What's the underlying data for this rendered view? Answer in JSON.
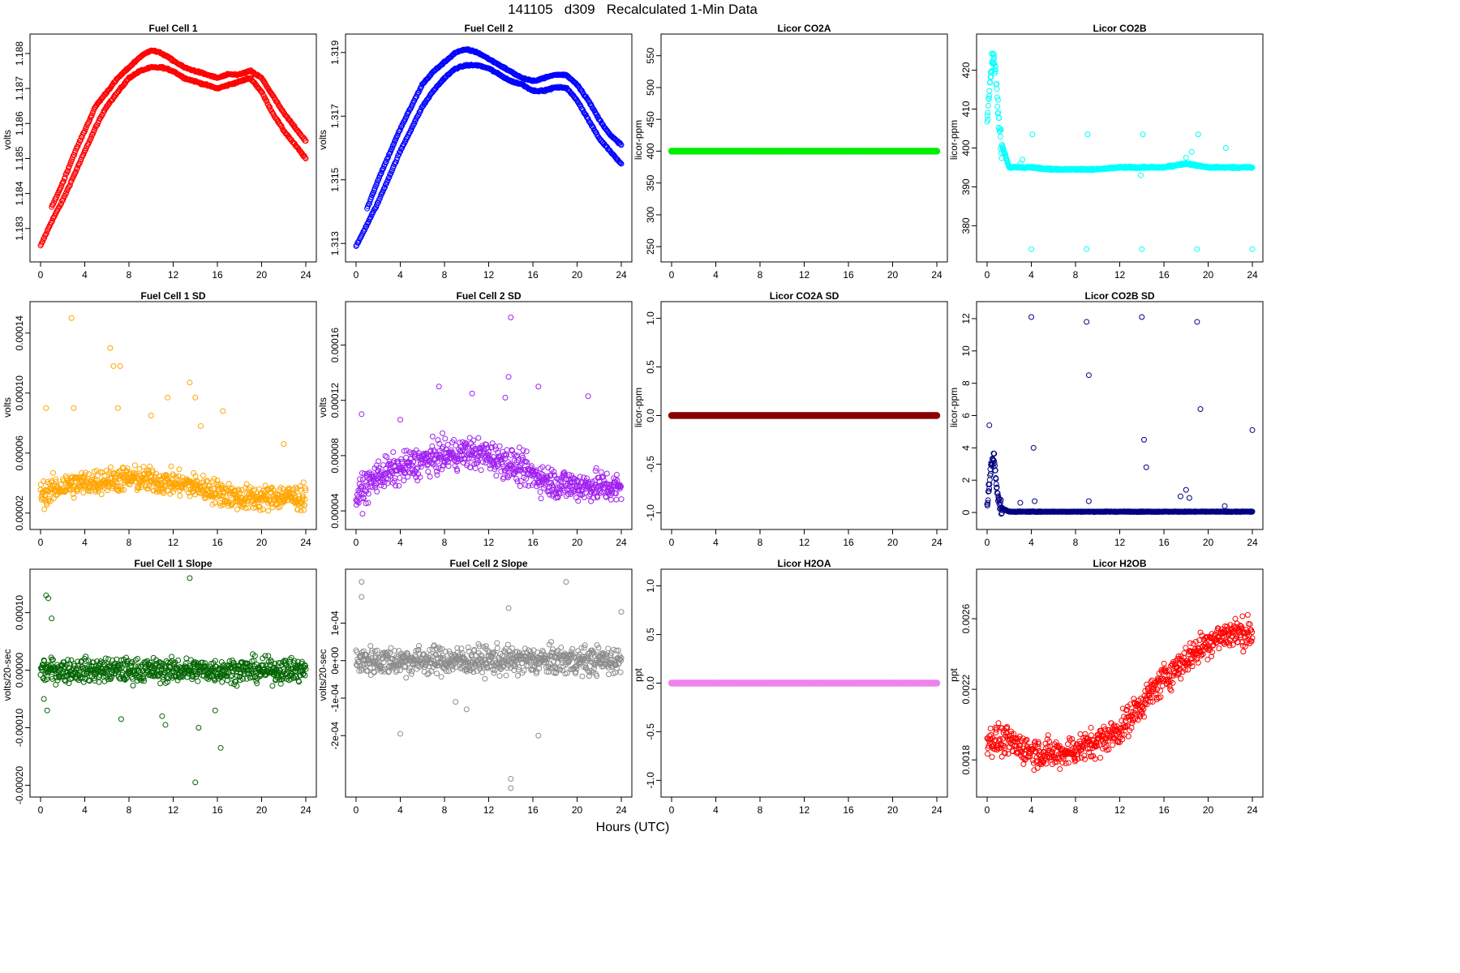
{
  "title": "141105   d309   Recalculated 1-Min Data",
  "x_axis_label": "Hours (UTC)",
  "x_ticks": [
    0,
    4,
    8,
    12,
    16,
    20,
    24
  ],
  "chart_data": [
    {
      "id": "fc1",
      "type": "scatter",
      "title": "Fuel Cell 1",
      "ylabel": "volts",
      "color": "#ff0000",
      "xlim": [
        0,
        24
      ],
      "ylim": [
        1.1823,
        1.1883
      ],
      "yticks": [
        1.183,
        1.184,
        1.185,
        1.186,
        1.187,
        1.188
      ],
      "ytick_labels": [
        "1.183",
        "1.184",
        "1.185",
        "1.186",
        "1.187",
        "1.188"
      ],
      "series": [
        {
          "x": [
            0,
            1,
            2,
            3,
            4,
            5,
            6,
            7,
            8,
            9,
            10,
            11,
            12,
            13,
            14,
            15,
            16,
            17,
            18,
            19,
            20,
            21,
            22,
            23,
            24
          ],
          "y": [
            1.1825,
            1.1832,
            1.1838,
            1.1845,
            1.1852,
            1.1859,
            1.1865,
            1.1869,
            1.1873,
            1.1875,
            1.1876,
            1.1876,
            1.1875,
            1.1873,
            1.1872,
            1.1871,
            1.187,
            1.1871,
            1.1872,
            1.1873,
            1.1869,
            1.1863,
            1.1858,
            1.1854,
            1.185
          ]
        },
        {
          "x": [
            1,
            2,
            3,
            4,
            5,
            6,
            7,
            8,
            9,
            10,
            11,
            12,
            13,
            14,
            15,
            16,
            17,
            18,
            19,
            20,
            21,
            22,
            23,
            24
          ],
          "y": [
            1.1836,
            1.1843,
            1.1851,
            1.1858,
            1.1865,
            1.1869,
            1.1873,
            1.1876,
            1.1879,
            1.1881,
            1.188,
            1.1878,
            1.1876,
            1.1875,
            1.1874,
            1.1873,
            1.1874,
            1.1874,
            1.1875,
            1.1873,
            1.1868,
            1.1863,
            1.1859,
            1.1855
          ]
        }
      ]
    },
    {
      "id": "fc2",
      "type": "scatter",
      "title": "Fuel Cell 2",
      "ylabel": "volts",
      "color": "#0000ff",
      "xlim": [
        0,
        24
      ],
      "ylim": [
        1.3127,
        1.3193
      ],
      "yticks": [
        1.313,
        1.315,
        1.317,
        1.319
      ],
      "ytick_labels": [
        "1.313",
        "1.315",
        "1.317",
        "1.319"
      ],
      "series": [
        {
          "x": [
            0,
            1,
            2,
            3,
            4,
            5,
            6,
            7,
            8,
            9,
            10,
            11,
            12,
            13,
            14,
            15,
            16,
            17,
            18,
            19,
            20,
            21,
            22,
            23,
            24
          ],
          "y": [
            1.3129,
            1.3136,
            1.3143,
            1.3151,
            1.3159,
            1.3166,
            1.3173,
            1.3178,
            1.3182,
            1.3185,
            1.3186,
            1.3186,
            1.3185,
            1.3183,
            1.3181,
            1.318,
            1.3178,
            1.3178,
            1.3179,
            1.3179,
            1.3175,
            1.3169,
            1.3163,
            1.3159,
            1.3155
          ]
        },
        {
          "x": [
            1,
            2,
            3,
            4,
            5,
            6,
            7,
            8,
            9,
            10,
            11,
            12,
            13,
            14,
            15,
            16,
            17,
            18,
            19,
            20,
            21,
            22,
            23,
            24
          ],
          "y": [
            1.3141,
            1.315,
            1.3158,
            1.3166,
            1.3173,
            1.318,
            1.3184,
            1.3187,
            1.319,
            1.3191,
            1.319,
            1.3188,
            1.3186,
            1.3184,
            1.3182,
            1.3181,
            1.3182,
            1.3183,
            1.3183,
            1.318,
            1.3175,
            1.3169,
            1.3164,
            1.3161
          ]
        }
      ]
    },
    {
      "id": "co2a",
      "type": "scatter",
      "title": "Licor CO2A",
      "ylabel": "licor-ppm",
      "color": "#00ee00",
      "xlim": [
        0,
        24
      ],
      "ylim": [
        240,
        570
      ],
      "yticks": [
        250,
        300,
        350,
        400,
        450,
        500,
        550
      ],
      "ytick_labels": [
        "250",
        "300",
        "350",
        "400",
        "450",
        "500",
        "550"
      ],
      "series": [
        {
          "x": [
            0,
            24
          ],
          "y": [
            400,
            400
          ]
        }
      ]
    },
    {
      "id": "co2b",
      "type": "scatter",
      "title": "Licor CO2B",
      "ylabel": "licor-ppm",
      "color": "#00ffff",
      "xlim": [
        0,
        24
      ],
      "ylim": [
        373,
        427
      ],
      "yticks": [
        380,
        390,
        400,
        410,
        420
      ],
      "ytick_labels": [
        "380",
        "390",
        "400",
        "410",
        "420"
      ],
      "series": [
        {
          "x": [
            0,
            0.3,
            0.6,
            0.9,
            1.2,
            2,
            4,
            6,
            8,
            10,
            12,
            14,
            16,
            18,
            20,
            22,
            24
          ],
          "y": [
            406,
            418,
            424,
            414,
            402,
            395,
            395,
            394.5,
            394.5,
            394.5,
            395,
            395,
            395,
            396,
            395,
            395,
            395
          ]
        },
        {
          "x": [
            4,
            4.1,
            9,
            9.1,
            14,
            14.1,
            19,
            19.1,
            24
          ],
          "y": [
            374,
            403.5,
            374,
            403.5,
            374,
            403.5,
            374,
            403.5,
            374
          ]
        }
      ]
    },
    {
      "id": "fc1sd",
      "type": "scatter",
      "title": "Fuel Cell 1 SD",
      "ylabel": "volts",
      "color": "#ffa500",
      "xlim": [
        0,
        24
      ],
      "ylim": [
        1.5e-05,
        0.000155
      ],
      "yticks": [
        2e-05,
        6e-05,
        0.0001,
        0.00014
      ],
      "ytick_labels": [
        "0.00002",
        "0.00006",
        "0.00010",
        "0.00014"
      ],
      "series": [
        {
          "x": [
            0,
            2,
            4,
            6,
            8,
            10,
            12,
            14,
            16,
            18,
            20,
            22,
            24
          ],
          "y": [
            3.2e-05,
            3.8e-05,
            4e-05,
            4.2e-05,
            4.3e-05,
            4.2e-05,
            4e-05,
            3.8e-05,
            3.4e-05,
            3e-05,
            3e-05,
            3.1e-05,
            3e-05
          ]
        },
        {
          "x": [
            0.5,
            2.8,
            3,
            6.3,
            6.6,
            7.2,
            7,
            11.5,
            10,
            13.5,
            14,
            14.5,
            16.5,
            22
          ],
          "y": [
            9e-05,
            0.00015,
            9e-05,
            0.00013,
            0.000118,
            0.000118,
            9e-05,
            9.7e-05,
            8.5e-05,
            0.000107,
            9.7e-05,
            7.8e-05,
            8.8e-05,
            6.6e-05
          ]
        }
      ]
    },
    {
      "id": "fc2sd",
      "type": "scatter",
      "title": "Fuel Cell 2 SD",
      "ylabel": "volts",
      "color": "#a020f0",
      "xlim": [
        0,
        24
      ],
      "ylim": [
        3.3e-05,
        0.000185
      ],
      "yticks": [
        4e-05,
        8e-05,
        0.00012,
        0.00016
      ],
      "ytick_labels": [
        "0.00004",
        "0.00008",
        "0.00012",
        "0.00016"
      ],
      "series": [
        {
          "x": [
            0,
            2,
            4,
            6,
            8,
            10,
            12,
            14,
            16,
            18,
            20,
            22,
            24
          ],
          "y": [
            5e-05,
            6.6e-05,
            7e-05,
            7.6e-05,
            8e-05,
            8.2e-05,
            8e-05,
            7.4e-05,
            6.6e-05,
            6e-05,
            5.8e-05,
            5.8e-05,
            5.6e-05
          ]
        },
        {
          "x": [
            0.5,
            4,
            7.5,
            10.5,
            13.5,
            13.8,
            14,
            16.5,
            21
          ],
          "y": [
            0.00011,
            0.000106,
            0.00013,
            0.000125,
            0.000122,
            0.000137,
            0.00018,
            0.00013,
            0.000123
          ]
        }
      ]
    },
    {
      "id": "co2asd",
      "type": "scatter",
      "title": "Licor CO2A SD",
      "ylabel": "licor-ppm",
      "color": "#8b0000",
      "xlim": [
        0,
        24
      ],
      "ylim": [
        -1.08,
        1.08
      ],
      "yticks": [
        -1.0,
        -0.5,
        0.0,
        0.5,
        1.0
      ],
      "ytick_labels": [
        "-1.0",
        "-0.5",
        "0.0",
        "0.5",
        "1.0"
      ],
      "series": [
        {
          "x": [
            0,
            24
          ],
          "y": [
            0,
            0
          ]
        }
      ]
    },
    {
      "id": "co2bsd",
      "type": "scatter",
      "title": "Licor CO2B SD",
      "ylabel": "licor-ppm",
      "color": "#000080",
      "xlim": [
        0,
        24
      ],
      "ylim": [
        -0.5,
        12.5
      ],
      "yticks": [
        0,
        2,
        4,
        6,
        8,
        10,
        12
      ],
      "ytick_labels": [
        "0",
        "2",
        "4",
        "6",
        "8",
        "10",
        "12"
      ],
      "series": [
        {
          "x": [
            0,
            0.3,
            0.6,
            0.9,
            1.2,
            2,
            24
          ],
          "y": [
            0.5,
            2.5,
            3.5,
            1.5,
            0.3,
            0.05,
            0.05
          ]
        },
        {
          "x": [
            0.2,
            4,
            4.2,
            9,
            9.2,
            14,
            14.2,
            14.4,
            19,
            19.3,
            24
          ],
          "y": [
            5.4,
            12.1,
            4.0,
            11.8,
            8.5,
            12.1,
            4.5,
            2.8,
            11.8,
            6.4,
            5.1
          ]
        }
      ]
    },
    {
      "id": "fc1slope",
      "type": "scatter",
      "title": "Fuel Cell 1 Slope",
      "ylabel": "volts/20-sec",
      "color": "#006400",
      "xlim": [
        0,
        24
      ],
      "ylim": [
        -0.000205,
        0.00016
      ],
      "yticks": [
        -0.0002,
        -0.0001,
        0.0,
        0.0001
      ],
      "ytick_labels": [
        "-0.00020",
        "-0.00010",
        "0.00000",
        "0.00010"
      ],
      "series": [
        {
          "x": [
            0,
            24
          ],
          "y": [
            0,
            0
          ]
        },
        {
          "x": [
            0.5,
            0.7,
            1,
            0.3,
            0.6,
            7.3,
            11,
            11.3,
            13.5,
            14,
            14.3,
            15.8,
            16.3
          ],
          "y": [
            0.00013,
            0.000125,
            9e-05,
            -5e-05,
            -7e-05,
            -8.5e-05,
            -8e-05,
            -9.5e-05,
            0.00016,
            -0.000195,
            -0.0001,
            -7e-05,
            -0.000135
          ]
        }
      ]
    },
    {
      "id": "fc2slope",
      "type": "scatter",
      "title": "Fuel Cell 2 Slope",
      "ylabel": "volts/20-sec",
      "color": "#8c8c8c",
      "xlim": [
        0,
        24
      ],
      "ylim": [
        -0.00034,
        0.00022
      ],
      "yticks": [
        -0.0002,
        -0.0001,
        0.0,
        0.0001
      ],
      "ytick_labels": [
        "-2e-04",
        "-1e-04",
        "0e+00",
        "1e-04"
      ],
      "series": [
        {
          "x": [
            0,
            24
          ],
          "y": [
            0,
            0
          ]
        },
        {
          "x": [
            0.5,
            0.5,
            4,
            9,
            10,
            13.8,
            14,
            14,
            16.5,
            19,
            24
          ],
          "y": [
            0.00021,
            0.00017,
            -0.000195,
            -0.00011,
            -0.00013,
            0.00014,
            -0.000315,
            -0.00034,
            -0.0002,
            0.00021,
            0.00013
          ]
        }
      ]
    },
    {
      "id": "h2oa",
      "type": "scatter",
      "title": "Licor H2OA",
      "ylabel": "ppt",
      "color": "#ee82ee",
      "xlim": [
        0,
        24
      ],
      "ylim": [
        -1.08,
        1.08
      ],
      "yticks": [
        -1.0,
        -0.5,
        0.0,
        0.5,
        1.0
      ],
      "ytick_labels": [
        "-1.0",
        "-0.5",
        "0.0",
        "0.5",
        "1.0"
      ],
      "series": [
        {
          "x": [
            0,
            24
          ],
          "y": [
            0,
            0
          ]
        }
      ]
    },
    {
      "id": "h2ob",
      "type": "scatter",
      "title": "Licor H2OB",
      "ylabel": "ppt",
      "color": "#ff0000",
      "xlim": [
        0,
        24
      ],
      "ylim": [
        0.00164,
        0.00283
      ],
      "yticks": [
        0.0018,
        0.0022,
        0.0026
      ],
      "ytick_labels": [
        "0.0018",
        "0.0022",
        "0.0026"
      ],
      "series": [
        {
          "x": [
            0,
            2,
            4,
            6,
            8,
            10,
            12,
            14,
            16,
            18,
            20,
            22,
            24
          ],
          "y": [
            0.00192,
            0.0019,
            0.00185,
            0.00183,
            0.00186,
            0.0019,
            0.00197,
            0.00212,
            0.00226,
            0.00237,
            0.00247,
            0.00252,
            0.00252
          ]
        }
      ]
    }
  ]
}
